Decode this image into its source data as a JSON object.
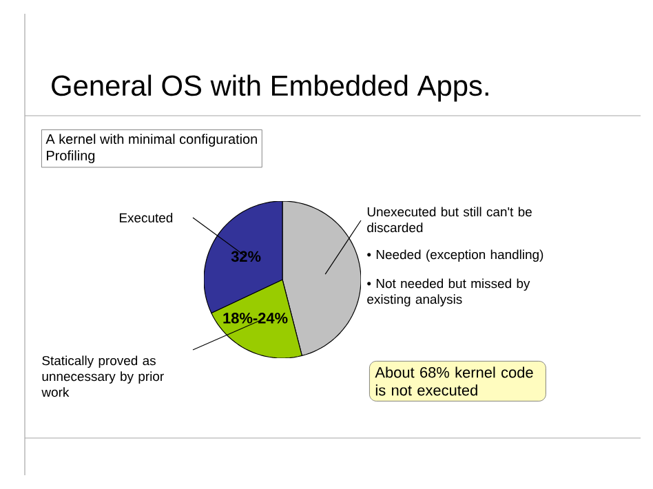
{
  "chart_data": {
    "type": "pie",
    "title": "General OS with Embedded Apps.",
    "categories": [
      "Unexecuted but still can't be discarded",
      "Statically proved as unnecessary by prior work",
      "Executed"
    ],
    "values": [
      46,
      22,
      32
    ],
    "colors": [
      "#c0c0c0",
      "#99cc00",
      "#333399"
    ],
    "value_labels": [
      null,
      null,
      "32%"
    ],
    "annotations": [
      "A kernel with minimal configuration",
      "Profiling",
      "• Needed (exception handling)",
      "• Not needed but missed by existing analysis",
      "About 68% kernel code is not executed",
      "18%-24%"
    ]
  }
}
